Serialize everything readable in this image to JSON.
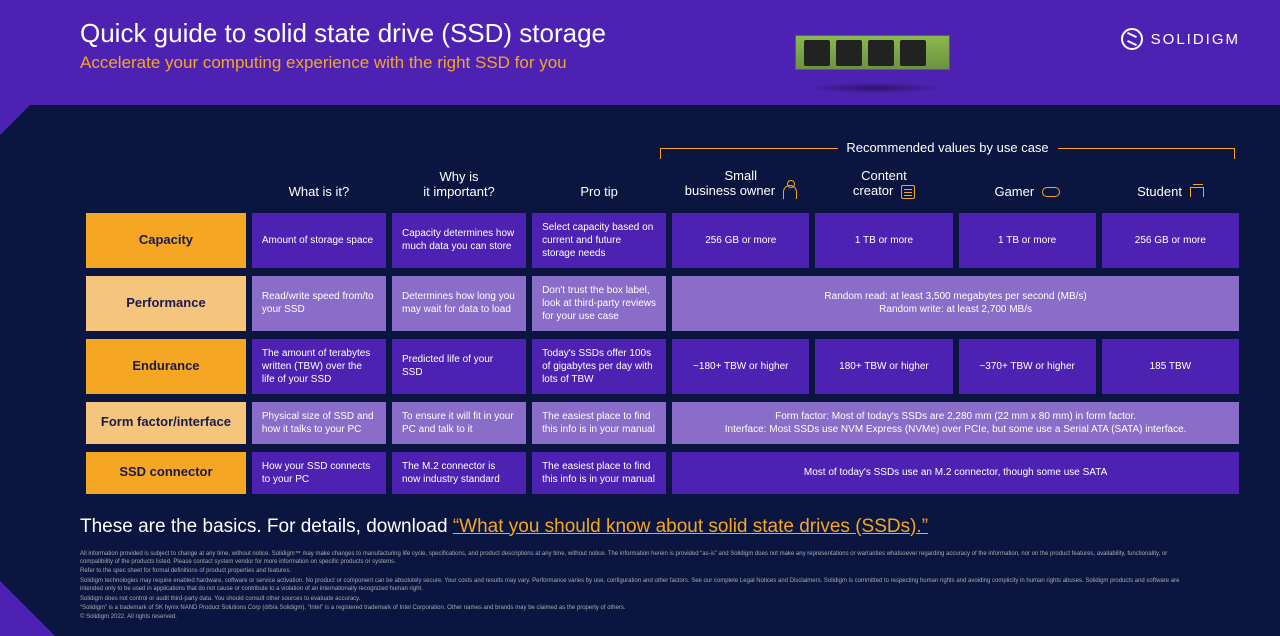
{
  "header": {
    "title": "Quick guide to solid state drive (SSD) storage",
    "subtitle": "Accelerate your computing experience with the right SSD for you",
    "brand": "SOLIDIGM"
  },
  "recommended_label": "Recommended values by use case",
  "columns": {
    "what": "What is it?",
    "why": "Why is\nit important?",
    "tip": "Pro tip",
    "use1": "Small\nbusiness owner",
    "use2": "Content\ncreator",
    "use3": "Gamer",
    "use4": "Student"
  },
  "rows": [
    {
      "label": "Capacity",
      "what": "Amount of storage space",
      "why": "Capacity determines how much data you can store",
      "tip": "Select capacity based on current and future storage needs",
      "use": [
        "256 GB or more",
        "1 TB or more",
        "1 TB or more",
        "256 GB or more"
      ],
      "merged": false,
      "tone": "dk",
      "labeltone": "dk"
    },
    {
      "label": "Performance",
      "what": "Read/write speed from/to your SSD",
      "why": "Determines how long you may wait for data to load",
      "tip": "Don't trust the box label, look at third-party reviews for your use case",
      "merged_text": "Random read: at least 3,500 megabytes per second (MB/s)\nRandom write: at least 2,700 MB/s",
      "merged": true,
      "tone": "lt",
      "labeltone": "lt"
    },
    {
      "label": "Endurance",
      "what": "The amount of terabytes written (TBW) over the life of your SSD",
      "why": "Predicted life of your SSD",
      "tip": "Today's SSDs offer 100s of gigabytes per day with lots of TBW",
      "use": [
        "~180+ TBW or higher",
        "180+ TBW or higher",
        "~370+ TBW or higher",
        "185 TBW"
      ],
      "merged": false,
      "tone": "dk",
      "labeltone": "dk"
    },
    {
      "label": "Form factor/interface",
      "what": "Physical size of SSD and how it talks to your PC",
      "why": "To ensure it will fit in your PC and talk to it",
      "tip": "The easiest place to find this info is in your manual",
      "merged_text": "Form factor: Most of today's SSDs are 2,280 mm (22 mm x 80 mm) in form factor.\nInterface: Most SSDs use NVM Express (NVMe) over PCIe, but some use a Serial ATA (SATA) interface.",
      "merged": true,
      "tone": "lt",
      "labeltone": "lt"
    },
    {
      "label": "SSD connector",
      "what": "How your SSD connects to your PC",
      "why": "The M.2 connector is now industry standard",
      "tip": "The easiest place to find this info is in your manual",
      "merged_text": "Most of today's SSDs use an M.2 connector, though some use SATA",
      "merged": true,
      "tone": "dk",
      "labeltone": "dk"
    }
  ],
  "footer": {
    "lead": "These are the basics. For details, download ",
    "link": "“What you should know about solid state drives (SSDs).”"
  },
  "fineprint": [
    "All information provided is subject to change at any time, without notice. Solidigm™ may make changes to manufacturing life cycle, specifications, and product descriptions at any time, without notice. The information herein is provided “as-is” and Solidigm does not make any representations or warranties whatsoever regarding accuracy of the information, nor on the product features, availability, functionality, or compatibility of the products listed. Please contact system vendor for more information on specific products or systems.",
    "Refer to the spec sheet for formal definitions of product properties and features.",
    "Solidigm technologies may require enabled hardware, software or service activation. No product or component can be absolutely secure. Your costs and results may vary. Performance varies by use, configuration and other factors. See our complete Legal Notices and Disclaimers. Solidigm is committed to respecting human rights and avoiding complicity in human rights abuses. Solidigm products and software are intended only to be used in applications that do not cause or contribute to a violation of an internationally recognized human right.",
    "Solidigm does not control or audit third-party data. You should consult other sources to evaluate accuracy.",
    "“Solidigm” is a trademark of SK hynix NAND Product Solutions Corp (d/b/a Solidigm). “Intel” is a registered trademark of Intel Corporation. Other names and brands may be claimed as the property of others.",
    "© Solidigm 2022. All rights reserved."
  ],
  "colors": {
    "bg": "#0a1640",
    "purple": "#4d22b3",
    "purple_lt": "#8a6cc9",
    "orange": "#f5a623",
    "orange_lt": "#f5c57e"
  }
}
